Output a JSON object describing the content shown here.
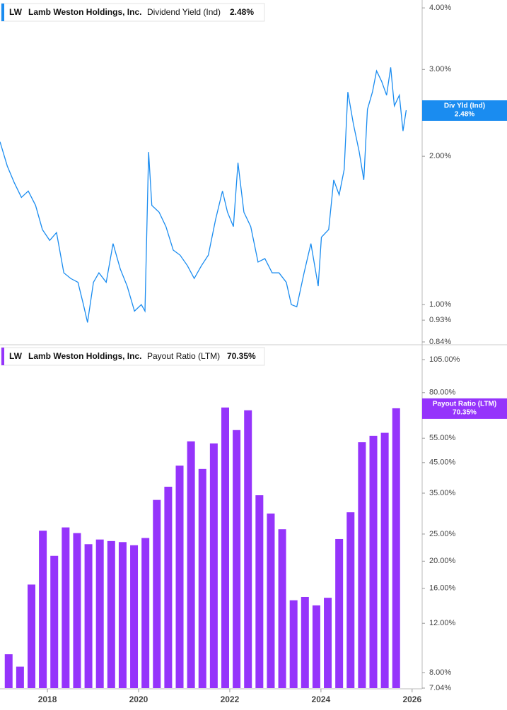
{
  "chart_data": [
    {
      "type": "line",
      "ticker": "LW",
      "company": "Lamb Weston Holdings, Inc.",
      "metric": "Dividend Yield (Ind)",
      "value_label": "2.48%",
      "tag": "Div Yld (Ind)",
      "color": "#1a8cf0",
      "log_scale": true,
      "xlim": [
        2016.96,
        2026.22
      ],
      "ylim": [
        0.84,
        4.15
      ],
      "yticks": [
        {
          "value": 4,
          "label": "4.00%"
        },
        {
          "value": 3,
          "label": "3.00%"
        },
        {
          "value": 2,
          "label": "2.00%"
        },
        {
          "value": 1,
          "label": "1.00%"
        },
        {
          "value": 0.93,
          "label": "0.93%"
        },
        {
          "value": 0.84,
          "label": "0.84%"
        }
      ],
      "x": [
        2016.96,
        2017.12,
        2017.27,
        2017.43,
        2017.58,
        2017.74,
        2017.89,
        2018.05,
        2018.2,
        2018.36,
        2018.51,
        2018.67,
        2018.79,
        2018.88,
        2019.01,
        2019.13,
        2019.29,
        2019.44,
        2019.6,
        2019.75,
        2019.91,
        2020.06,
        2020.14,
        2020.22,
        2020.29,
        2020.45,
        2020.6,
        2020.76,
        2020.91,
        2021.07,
        2021.22,
        2021.38,
        2021.53,
        2021.69,
        2021.84,
        2021.95,
        2022.08,
        2022.18,
        2022.31,
        2022.46,
        2022.62,
        2022.77,
        2022.93,
        2023.08,
        2023.24,
        2023.35,
        2023.47,
        2023.63,
        2023.78,
        2023.94,
        2024.01,
        2024.17,
        2024.28,
        2024.4,
        2024.51,
        2024.59,
        2024.71,
        2024.84,
        2024.94,
        2025.02,
        2025.13,
        2025.22,
        2025.33,
        2025.44,
        2025.53,
        2025.61,
        2025.72,
        2025.8,
        2025.87
      ],
      "values": [
        2.14,
        1.91,
        1.77,
        1.65,
        1.7,
        1.59,
        1.42,
        1.35,
        1.4,
        1.16,
        1.13,
        1.11,
        1.0,
        0.92,
        1.11,
        1.16,
        1.11,
        1.33,
        1.18,
        1.09,
        0.97,
        1.0,
        0.97,
        2.04,
        1.59,
        1.54,
        1.44,
        1.29,
        1.26,
        1.2,
        1.13,
        1.2,
        1.26,
        1.49,
        1.7,
        1.54,
        1.44,
        1.94,
        1.54,
        1.44,
        1.22,
        1.24,
        1.16,
        1.16,
        1.11,
        1.0,
        0.99,
        1.16,
        1.33,
        1.09,
        1.37,
        1.42,
        1.79,
        1.67,
        1.88,
        2.7,
        2.33,
        2.04,
        1.79,
        2.49,
        2.7,
        2.98,
        2.84,
        2.66,
        3.03,
        2.53,
        2.66,
        2.25,
        2.48
      ]
    },
    {
      "type": "bar",
      "ticker": "LW",
      "company": "Lamb Weston Holdings, Inc.",
      "metric": "Payout Ratio (LTM)",
      "value_label": "70.35%",
      "tag": "Payout Ratio (LTM)",
      "color": "#9534fb",
      "log_scale": true,
      "xlim": [
        2016.96,
        2026.22
      ],
      "ylim": [
        7.04,
        105
      ],
      "xticks": [
        2018,
        2020,
        2022,
        2024,
        2026
      ],
      "yticks": [
        {
          "value": 105,
          "label": "105.00%"
        },
        {
          "value": 80,
          "label": "80.00%"
        },
        {
          "value": 55,
          "label": "55.00%"
        },
        {
          "value": 45,
          "label": "45.00%"
        },
        {
          "value": 35,
          "label": "35.00%"
        },
        {
          "value": 25,
          "label": "25.00%"
        },
        {
          "value": 20,
          "label": "20.00%"
        },
        {
          "value": 16,
          "label": "16.00%"
        },
        {
          "value": 12,
          "label": "12.00%"
        },
        {
          "value": 8,
          "label": "8.00%"
        },
        {
          "value": 7.04,
          "label": "7.04%"
        }
      ],
      "x": [
        2017.15,
        2017.4,
        2017.65,
        2017.9,
        2018.15,
        2018.4,
        2018.65,
        2018.9,
        2019.15,
        2019.4,
        2019.65,
        2019.9,
        2020.15,
        2020.4,
        2020.65,
        2020.9,
        2021.15,
        2021.4,
        2021.65,
        2021.9,
        2022.15,
        2022.4,
        2022.65,
        2022.9,
        2023.15,
        2023.4,
        2023.65,
        2023.9,
        2024.15,
        2024.4,
        2024.65,
        2024.9,
        2025.15,
        2025.4,
        2025.65
      ],
      "values": [
        9.3,
        8.4,
        16.5,
        25.7,
        20.9,
        26.4,
        25.2,
        23.0,
        23.9,
        23.6,
        23.4,
        22.8,
        24.2,
        33.1,
        36.9,
        43.9,
        53.6,
        42.7,
        52.7,
        70.8,
        58.8,
        69.2,
        34.4,
        29.6,
        26.0,
        14.5,
        14.9,
        13.9,
        14.8,
        24.0,
        29.9,
        53.2,
        56.1,
        57.5,
        70.35
      ]
    }
  ]
}
